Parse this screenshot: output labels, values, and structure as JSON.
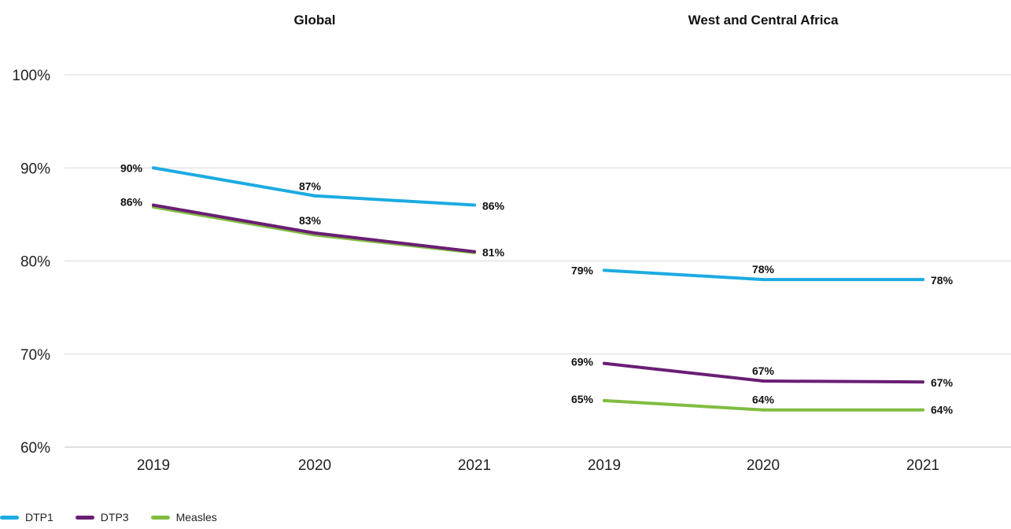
{
  "chart_data": {
    "type": "line",
    "ylim": [
      60,
      100
    ],
    "y_ticks": [
      {
        "value": 60,
        "label": "60%"
      },
      {
        "value": 70,
        "label": "70%"
      },
      {
        "value": 80,
        "label": "80%"
      },
      {
        "value": 90,
        "label": "90%"
      },
      {
        "value": 100,
        "label": "100%"
      }
    ],
    "grid": "horizontal",
    "legend_position": "bottom-left",
    "panels": [
      {
        "title": "Global",
        "categories": [
          "2019",
          "2020",
          "2021"
        ],
        "series": [
          {
            "name": "DTP1",
            "values": [
              90,
              87,
              86
            ],
            "labels": [
              "90%",
              "87%",
              "86%"
            ]
          },
          {
            "name": "DTP3",
            "values": [
              86,
              83,
              81
            ],
            "labels": [
              "86%",
              "83%",
              "81%"
            ]
          },
          {
            "name": "Measles",
            "values": [
              85.8,
              82.8,
              80.9
            ],
            "labels": [
              "",
              "",
              ""
            ]
          }
        ]
      },
      {
        "title": "West and Central Africa",
        "categories": [
          "2019",
          "2020",
          "2021"
        ],
        "series": [
          {
            "name": "DTP1",
            "values": [
              79,
              78,
              78
            ],
            "labels": [
              "79%",
              "78%",
              "78%"
            ]
          },
          {
            "name": "DTP3",
            "values": [
              69,
              67.1,
              67
            ],
            "labels": [
              "69%",
              "67%",
              "67%"
            ]
          },
          {
            "name": "Measles",
            "values": [
              65,
              64,
              64
            ],
            "labels": [
              "65%",
              "64%",
              "64%"
            ]
          }
        ]
      }
    ]
  },
  "legend": [
    {
      "name": "DTP1",
      "color": "#1CABE2"
    },
    {
      "name": "DTP3",
      "color": "#6A1E74"
    },
    {
      "name": "Measles",
      "color": "#80BD41"
    }
  ],
  "colors": {
    "DTP1": "#1CABE2",
    "DTP3": "#6A1E74",
    "Measles": "#80BD41",
    "grid": "#D9D9D9",
    "text": "#222222"
  }
}
